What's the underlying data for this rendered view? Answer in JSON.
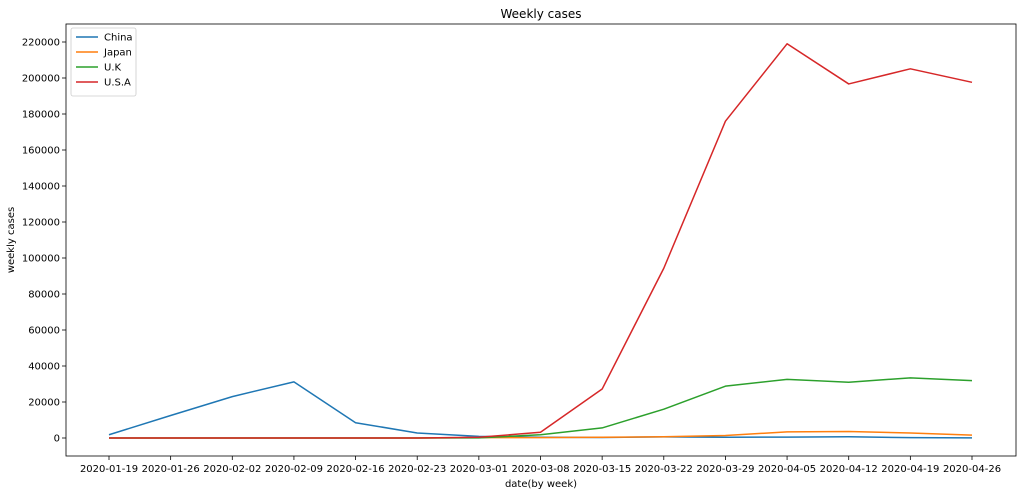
{
  "chart_data": {
    "type": "line",
    "title": "Weekly cases",
    "xlabel": "date(by week)",
    "ylabel": "weekly cases",
    "x": [
      "2020-01-19",
      "2020-01-26",
      "2020-02-02",
      "2020-02-09",
      "2020-02-16",
      "2020-02-23",
      "2020-03-01",
      "2020-03-08",
      "2020-03-15",
      "2020-03-22",
      "2020-03-29",
      "2020-04-05",
      "2020-04-12",
      "2020-04-19",
      "2020-04-26"
    ],
    "ylim": [
      -10000,
      230000
    ],
    "yticks": [
      0,
      20000,
      40000,
      60000,
      80000,
      100000,
      120000,
      140000,
      160000,
      180000,
      200000,
      220000
    ],
    "legend_position": "top-left",
    "grid": false,
    "series": [
      {
        "name": "China",
        "color": "#1f77b4",
        "values": [
          1800,
          12500,
          23000,
          31200,
          8500,
          2800,
          900,
          400,
          300,
          600,
          400,
          500,
          700,
          200,
          100
        ]
      },
      {
        "name": "Japan",
        "color": "#ff7f0e",
        "values": [
          0,
          0,
          0,
          0,
          0,
          0,
          200,
          200,
          400,
          700,
          1400,
          3400,
          3600,
          2800,
          1600
        ]
      },
      {
        "name": "U.K",
        "color": "#2ca02c",
        "values": [
          0,
          0,
          0,
          0,
          0,
          0,
          100,
          1800,
          5600,
          16000,
          28800,
          32600,
          31000,
          33400,
          31900
        ]
      },
      {
        "name": "U.S.A",
        "color": "#d62728",
        "values": [
          0,
          0,
          0,
          0,
          0,
          0,
          400,
          3200,
          27200,
          94300,
          176000,
          219000,
          196700,
          205100,
          197600
        ]
      }
    ]
  }
}
